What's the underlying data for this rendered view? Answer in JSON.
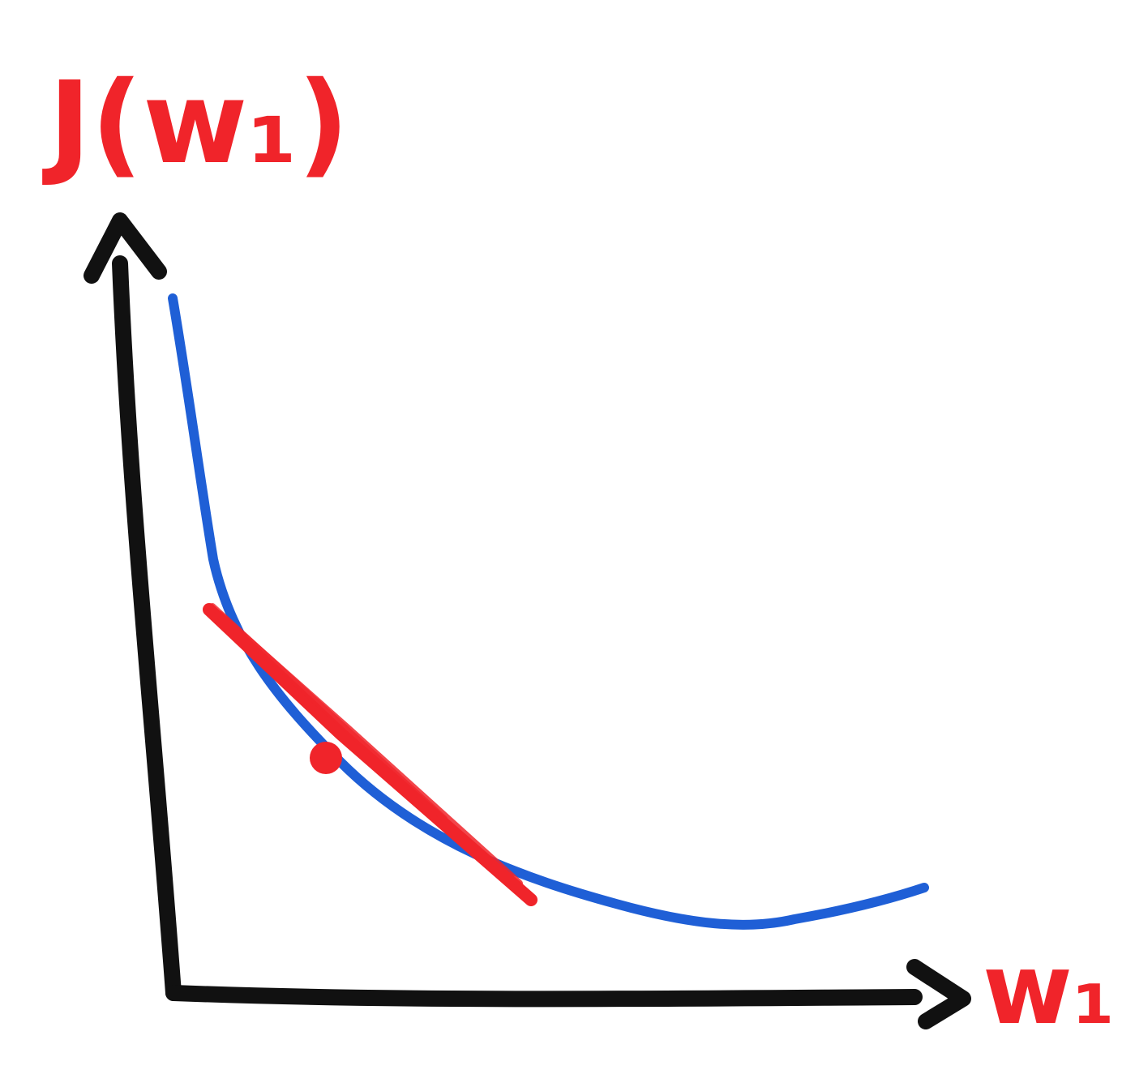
{
  "diagram": {
    "y_axis_label": "J(w₁)",
    "x_axis_label": "w₁",
    "colors": {
      "axes": "#111111",
      "curve": "#1f5fd6",
      "tangent": "#f0242a",
      "label": "#f0242a",
      "point": "#f0242a"
    }
  }
}
